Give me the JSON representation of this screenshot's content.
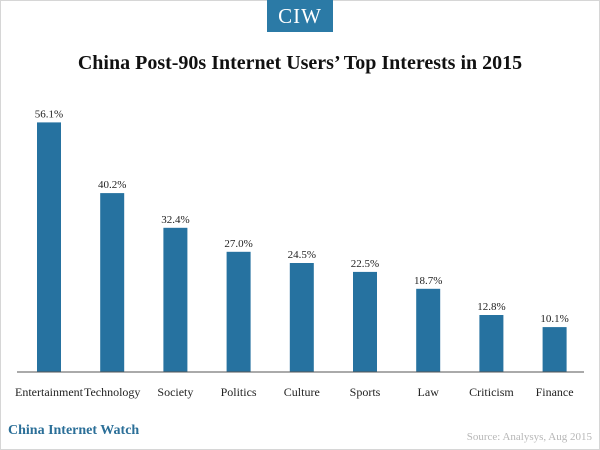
{
  "header": {
    "logo_text": "CIW"
  },
  "footer": {
    "brand": "China Internet Watch",
    "source": "Source: Analysys, Aug 2015"
  },
  "colors": {
    "bar": "#2672a0",
    "logo": "#2b7aa6",
    "brand": "#2b6f98"
  },
  "chart_data": {
    "type": "bar",
    "title": "China Post-90s Internet Users’ Top Interests in 2015",
    "categories": [
      "Entertainment",
      "Technology",
      "Society",
      "Politics",
      "Culture",
      "Sports",
      "Law",
      "Criticism",
      "Finance"
    ],
    "values": [
      56.1,
      40.2,
      32.4,
      27.0,
      24.5,
      22.5,
      18.7,
      12.8,
      10.1
    ],
    "data_labels": [
      "56.1%",
      "40.2%",
      "32.4%",
      "27.0%",
      "24.5%",
      "22.5%",
      "18.7%",
      "12.8%",
      "10.1%"
    ],
    "ylim": [
      0,
      60
    ],
    "grid": false,
    "legend": "none",
    "xlabel": "",
    "ylabel": ""
  }
}
